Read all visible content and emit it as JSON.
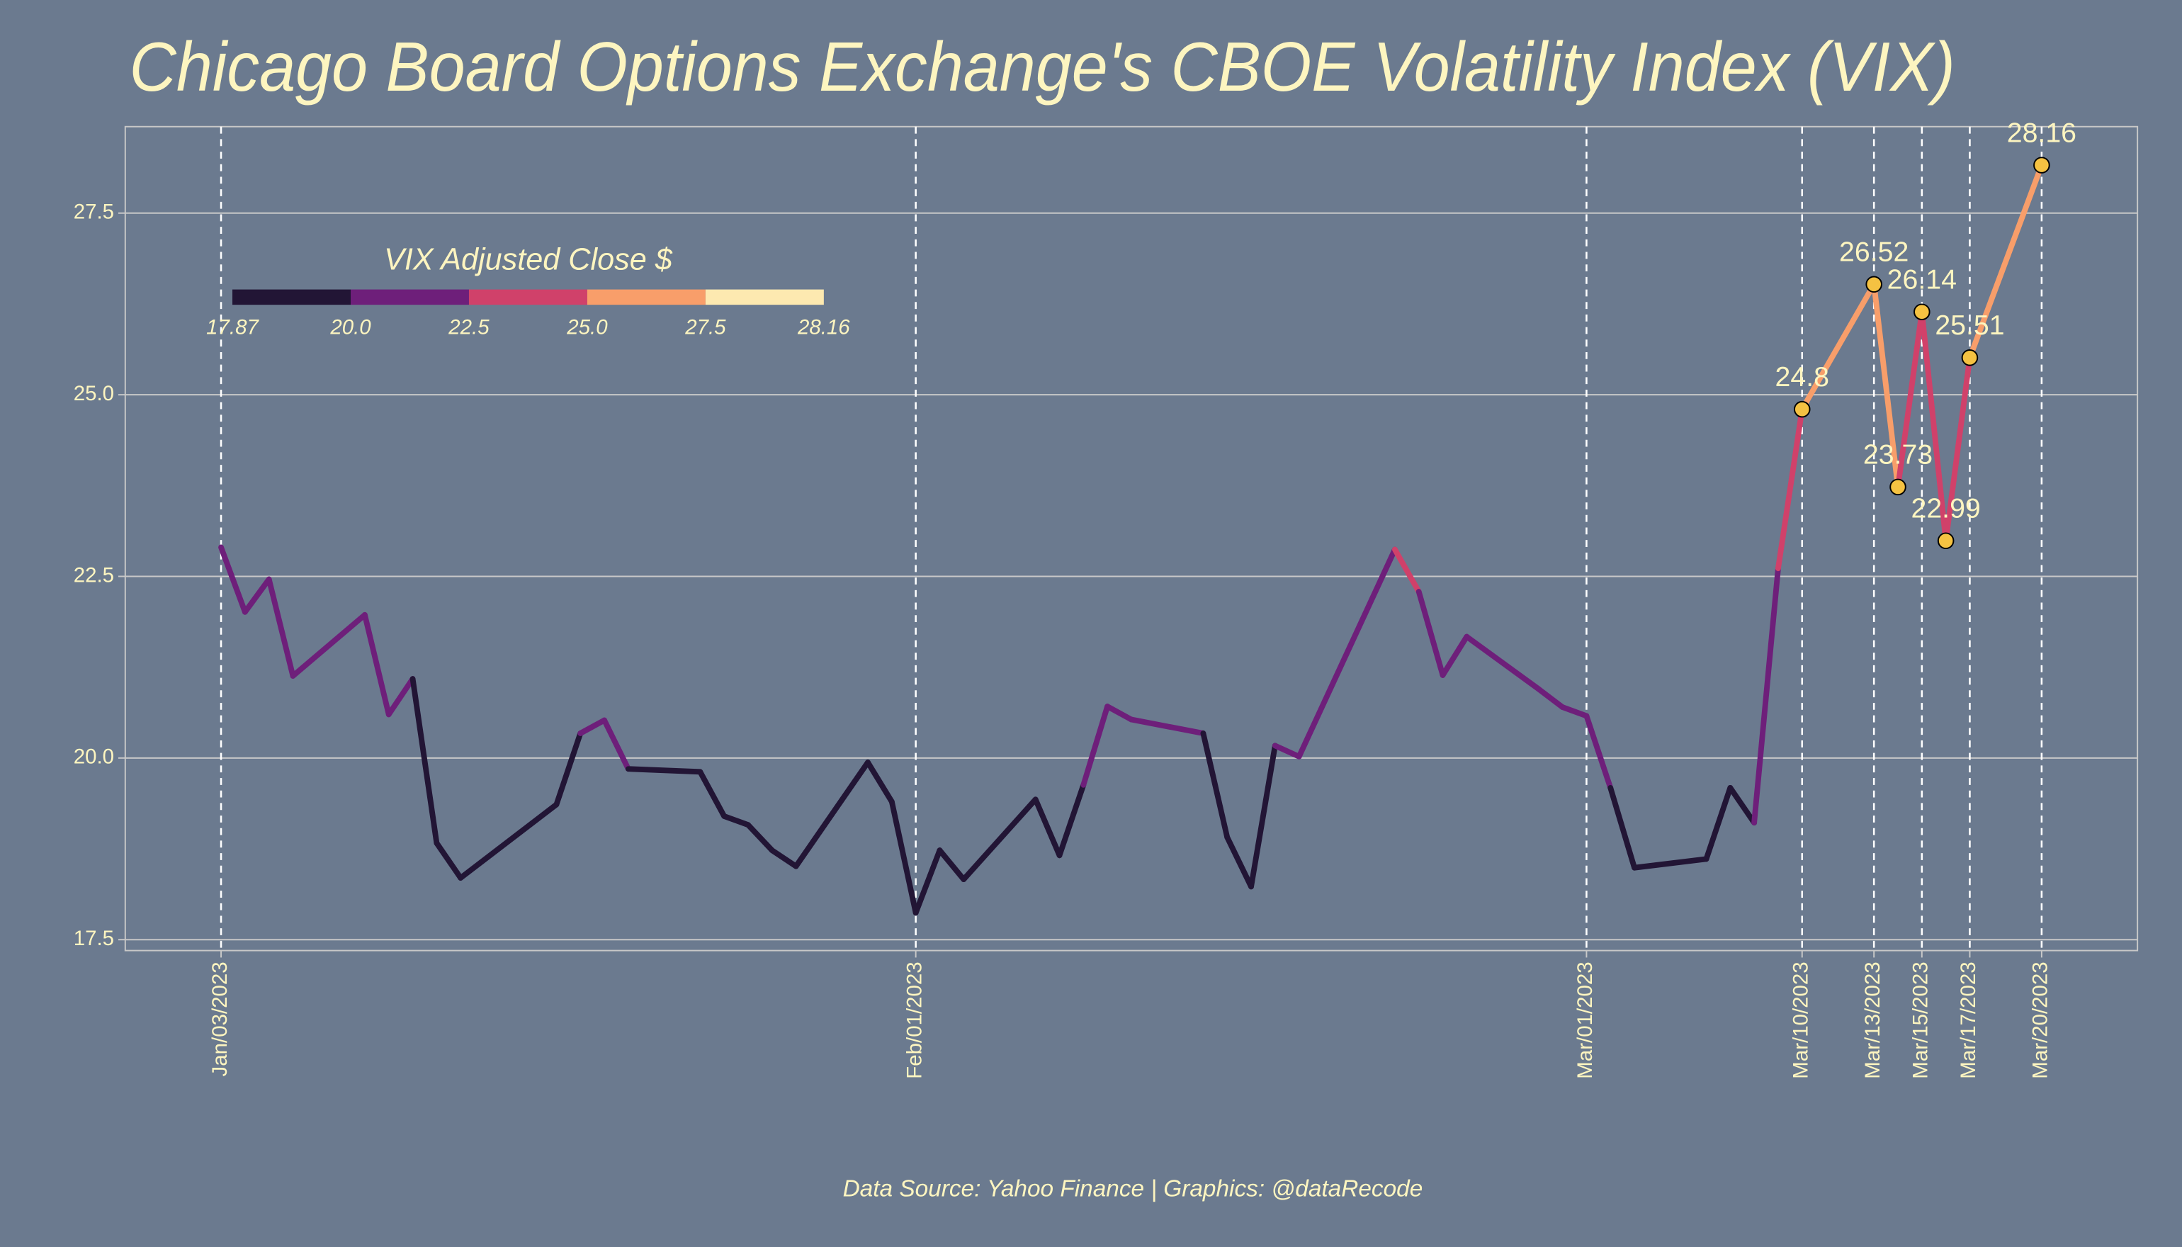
{
  "chart_data": {
    "type": "line",
    "title": "Chicago Board Options Exchange's CBOE Volatility Index (VIX)",
    "source": "Data Source: Yahoo Finance | Graphics: @dataRecode",
    "x": [
      "2023-01-03",
      "2023-01-04",
      "2023-01-05",
      "2023-01-06",
      "2023-01-09",
      "2023-01-10",
      "2023-01-11",
      "2023-01-12",
      "2023-01-13",
      "2023-01-17",
      "2023-01-18",
      "2023-01-19",
      "2023-01-20",
      "2023-01-23",
      "2023-01-24",
      "2023-01-25",
      "2023-01-26",
      "2023-01-27",
      "2023-01-30",
      "2023-01-31",
      "2023-02-01",
      "2023-02-02",
      "2023-02-03",
      "2023-02-06",
      "2023-02-07",
      "2023-02-08",
      "2023-02-09",
      "2023-02-10",
      "2023-02-13",
      "2023-02-14",
      "2023-02-15",
      "2023-02-16",
      "2023-02-17",
      "2023-02-21",
      "2023-02-22",
      "2023-02-23",
      "2023-02-24",
      "2023-02-27",
      "2023-02-28",
      "2023-03-01",
      "2023-03-02",
      "2023-03-03",
      "2023-03-06",
      "2023-03-07",
      "2023-03-08",
      "2023-03-09",
      "2023-03-10",
      "2023-03-13",
      "2023-03-14",
      "2023-03-15",
      "2023-03-16",
      "2023-03-17",
      "2023-03-20"
    ],
    "values": [
      22.9,
      22.01,
      22.46,
      21.13,
      21.97,
      20.6,
      21.09,
      18.83,
      18.35,
      19.36,
      20.34,
      20.52,
      19.85,
      19.81,
      19.2,
      19.08,
      18.73,
      18.51,
      19.94,
      19.4,
      17.87,
      18.73,
      18.33,
      19.43,
      18.66,
      19.63,
      20.71,
      20.53,
      20.34,
      18.91,
      18.23,
      20.17,
      20.02,
      22.87,
      22.29,
      21.14,
      21.67,
      20.95,
      20.7,
      20.58,
      19.59,
      18.49,
      18.61,
      19.59,
      19.11,
      22.61,
      24.8,
      26.52,
      23.73,
      26.14,
      22.99,
      25.51,
      28.16
    ],
    "label_from": "2023-03-10",
    "marker_color": "#f5c242",
    "xlim": [
      "2022-12-30",
      "2023-03-24"
    ],
    "xticks": [
      {
        "value": "2023-01-03",
        "label": "Jan/03/2023"
      },
      {
        "value": "2023-02-01",
        "label": "Feb/01/2023"
      },
      {
        "value": "2023-03-01",
        "label": "Mar/01/2023"
      },
      {
        "value": "2023-03-10",
        "label": "Mar/10/2023"
      },
      {
        "value": "2023-03-13",
        "label": "Mar/13/2023"
      },
      {
        "value": "2023-03-15",
        "label": "Mar/15/2023"
      },
      {
        "value": "2023-03-17",
        "label": "Mar/17/2023"
      },
      {
        "value": "2023-03-20",
        "label": "Mar/20/2023"
      }
    ],
    "ylim": [
      17.35,
      28.69
    ],
    "yticks": [
      17.5,
      {
        "value": 20,
        "label": "20.0"
      },
      22.5,
      {
        "value": 25,
        "label": "25.0"
      },
      27.5
    ],
    "grid": true,
    "colorbar": {
      "title": "VIX Adjusted Close $",
      "ticks": [
        17.87,
        {
          "value": 20,
          "label": "20.0"
        },
        22.5,
        {
          "value": 25,
          "label": "25.0"
        },
        27.5,
        28.16
      ],
      "colors": [
        "#221535",
        "#6e1f7a",
        "#d0416a",
        "#f89e6a",
        "#fde9b0"
      ]
    }
  }
}
